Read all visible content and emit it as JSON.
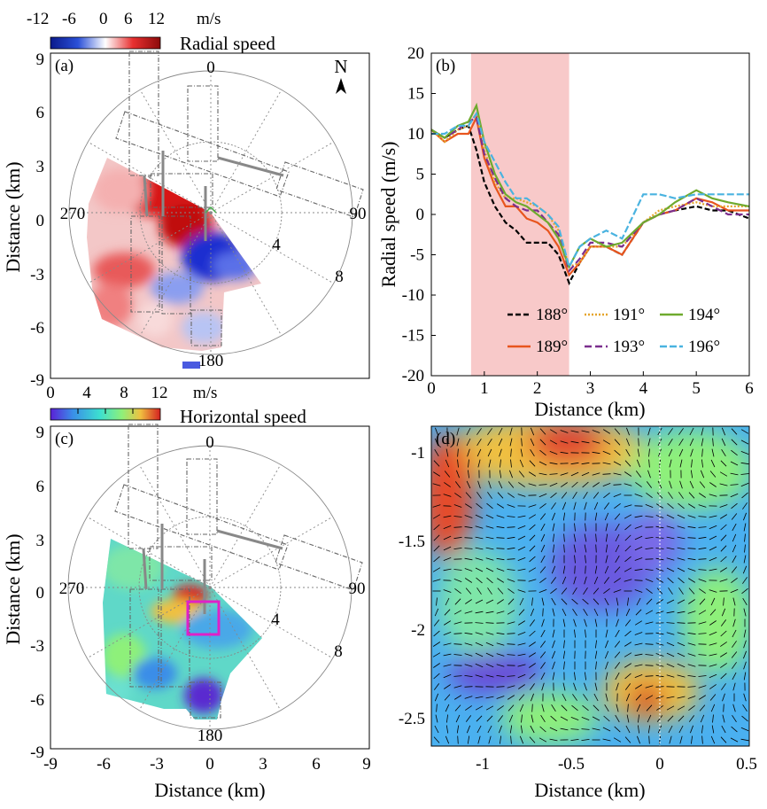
{
  "chart_data": [
    {
      "panel": "(a)",
      "type": "heatmap",
      "title": "",
      "colorbar": {
        "label": "Radial speed",
        "unit": "m/s",
        "ticks": [
          "-12",
          "-6",
          "0",
          "6",
          "12"
        ],
        "colors": [
          "#0a1a8c",
          "#2a50d8",
          "#ffffff",
          "#e83030",
          "#8c0a0a"
        ]
      },
      "xlim": [
        -9,
        9
      ],
      "ylim": [
        -9,
        9
      ],
      "yticks": [
        "9",
        "6",
        "3",
        "0",
        "-3",
        "-6",
        "-9"
      ],
      "ylabel": "Distance (km)",
      "polar_labels": {
        "north": "0",
        "east": "90",
        "south": "180",
        "west": "270",
        "ring1": "4",
        "ring2": "8"
      },
      "north_label": "N"
    },
    {
      "panel": "(b)",
      "type": "line",
      "xlabel": "Distance (km)",
      "ylabel": "Radial speed (m/s)",
      "xlim": [
        0,
        6
      ],
      "ylim": [
        -20,
        20
      ],
      "xticks": [
        "0",
        "1",
        "2",
        "3",
        "4",
        "5",
        "6"
      ],
      "yticks": [
        "20",
        "15",
        "10",
        "5",
        "0",
        "-5",
        "-10",
        "-15",
        "-20"
      ],
      "shaded_region": [
        0.75,
        2.6
      ],
      "x": [
        0.0,
        0.25,
        0.5,
        0.7,
        0.85,
        1.0,
        1.2,
        1.4,
        1.6,
        1.8,
        2.0,
        2.2,
        2.4,
        2.6,
        2.8,
        3.0,
        3.3,
        3.6,
        4.0,
        4.3,
        4.6,
        5.0,
        5.3,
        5.6,
        6.0
      ],
      "series": [
        {
          "name": "188°",
          "color": "#000000",
          "dash": "6,3",
          "values": [
            10.5,
            9.5,
            10.5,
            11,
            8,
            4,
            1,
            -1,
            -2,
            -3.5,
            -3.5,
            -3.5,
            -5,
            -8.5,
            -6,
            -4,
            -4,
            -5,
            -1,
            0,
            0.5,
            1,
            0.5,
            0.5,
            -0.5
          ]
        },
        {
          "name": "189°",
          "color": "#e8551e",
          "dash": "",
          "values": [
            10.5,
            9,
            10,
            10,
            12,
            7,
            3.5,
            1,
            1,
            -0.5,
            -1,
            -2,
            -4,
            -7.5,
            -6,
            -4,
            -4,
            -5,
            -1,
            0,
            0.5,
            2,
            1.5,
            0.5,
            0.5
          ]
        },
        {
          "name": "191°",
          "color": "#e5a52a",
          "dash": "2,2",
          "values": [
            10.5,
            9,
            10.5,
            11,
            12.5,
            8,
            4,
            2,
            2,
            1.5,
            1,
            0,
            -2,
            -6.5,
            -6,
            -4,
            -4,
            -4,
            -1,
            0.5,
            1,
            1.5,
            1,
            1,
            1
          ]
        },
        {
          "name": "193°",
          "color": "#7b2f8e",
          "dash": "8,4",
          "values": [
            10.5,
            9.5,
            10.5,
            11.5,
            12,
            7.5,
            4.5,
            2,
            1,
            0.5,
            0.5,
            -1,
            -2.5,
            -7,
            -5.5,
            -3.5,
            -3.5,
            -4,
            -1,
            0,
            0.5,
            2,
            1,
            0,
            0
          ]
        },
        {
          "name": "194°",
          "color": "#6faa2e",
          "dash": "",
          "values": [
            10.5,
            9.5,
            11,
            11.5,
            13.5,
            9,
            5,
            2.5,
            1.5,
            1,
            0,
            -1,
            -3,
            -6.5,
            -4,
            -3,
            -4,
            -3.5,
            -1,
            0,
            1.5,
            3,
            2,
            1.5,
            1
          ]
        },
        {
          "name": "196°",
          "color": "#4ab3e0",
          "dash": "8,3",
          "values": [
            10,
            10,
            11,
            11,
            12.5,
            9,
            6.5,
            4,
            2,
            2,
            1,
            0,
            -1.5,
            -6.5,
            -4,
            -3,
            -2,
            -3,
            2.5,
            2.5,
            2,
            2.5,
            2.5,
            2.5,
            2.5
          ]
        }
      ]
    },
    {
      "panel": "(c)",
      "type": "heatmap",
      "title": "",
      "colorbar": {
        "label": "Horizontal speed",
        "unit": "m/s",
        "ticks": [
          "0",
          "4",
          "8",
          "12"
        ],
        "colors": [
          "#5a1fd6",
          "#3a8de8",
          "#3ce0d0",
          "#8ef07a",
          "#f0c040",
          "#d42020"
        ]
      },
      "xlim": [
        -9,
        9
      ],
      "ylim": [
        -9,
        9
      ],
      "xticks": [
        "-9",
        "-6",
        "-3",
        "0",
        "3",
        "6",
        "9"
      ],
      "yticks": [
        "9",
        "6",
        "3",
        "0",
        "-3",
        "-6",
        "-9"
      ],
      "xlabel": "Distance (km)",
      "ylabel": "Distance (km)",
      "polar_labels": {
        "north": "0",
        "east": "90",
        "south": "180",
        "west": "270",
        "ring1": "4",
        "ring2": "8"
      },
      "inset_box_color": "#e020c8"
    },
    {
      "panel": "(d)",
      "type": "heatmap",
      "xlabel": "Distance (km)",
      "xlim": [
        -1.3,
        0.5
      ],
      "ylim": [
        -2.7,
        -0.9
      ],
      "xticks": [
        "-1",
        "-0.5",
        "0",
        "0.5"
      ],
      "yticks": [
        "-1",
        "-1.5",
        "-2",
        "-2.5"
      ]
    }
  ]
}
